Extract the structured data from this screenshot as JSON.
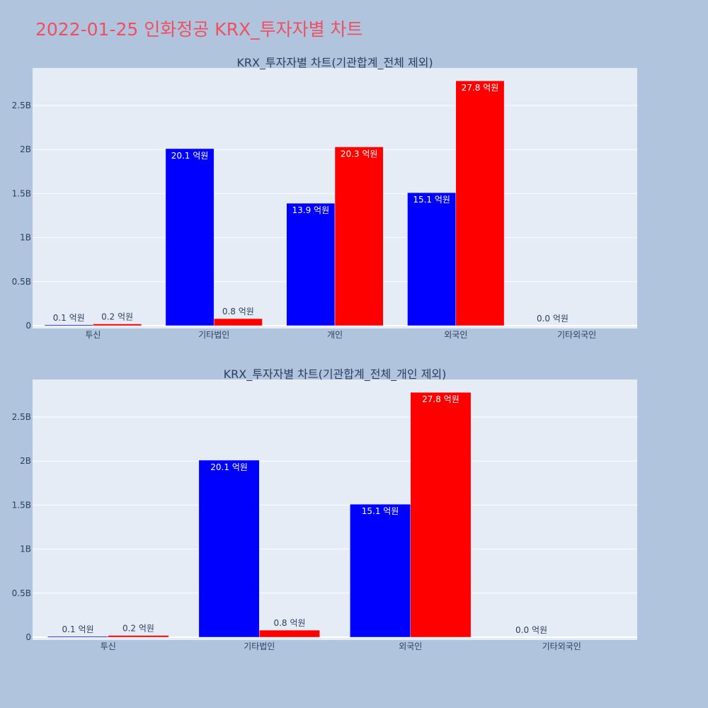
{
  "title": "2022-01-25 인화정공 KRX_투자자별 차트",
  "colors": {
    "buy": "#0000ff",
    "sell": "#ff0000",
    "background": "#b0c4de",
    "plot_bg": "#e5ecf6"
  },
  "chart_data": [
    {
      "type": "bar",
      "title": "KRX_투자자별 차트(기관합계_전체 제외)",
      "categories": [
        "투신",
        "기타법인",
        "개인",
        "외국인",
        "기타외국인"
      ],
      "series": [
        {
          "color": "#0000ff",
          "values": [
            10000000,
            2010000000,
            1390000000,
            1510000000,
            0
          ],
          "labels": [
            "0.1 억원",
            "20.1 억원",
            "13.9 억원",
            "15.1 억원",
            "0.0 억원"
          ]
        },
        {
          "color": "#ff0000",
          "values": [
            20000000,
            80000000,
            2030000000,
            2780000000,
            0
          ],
          "labels": [
            "0.2 억원",
            "0.8 억원",
            "20.3 억원",
            "27.8 억원",
            ""
          ]
        }
      ],
      "yticks": [
        "0",
        "0.5B",
        "1B",
        "1.5B",
        "2B",
        "2.5B"
      ],
      "ytick_values": [
        0,
        500000000,
        1000000000,
        1500000000,
        2000000000,
        2500000000
      ],
      "ylim": [
        0,
        2926000000
      ],
      "grid": true
    },
    {
      "type": "bar",
      "title": "KRX_투자자별 차트(기관합계_전체_개인 제외)",
      "categories": [
        "투신",
        "기타법인",
        "외국인",
        "기타외국인"
      ],
      "series": [
        {
          "color": "#0000ff",
          "values": [
            10000000,
            2010000000,
            1510000000,
            0
          ],
          "labels": [
            "0.1 억원",
            "20.1 억원",
            "15.1 억원",
            "0.0 억원"
          ]
        },
        {
          "color": "#ff0000",
          "values": [
            20000000,
            80000000,
            2780000000,
            0
          ],
          "labels": [
            "0.2 억원",
            "0.8 억원",
            "27.8 억원",
            ""
          ]
        }
      ],
      "yticks": [
        "0",
        "0.5B",
        "1B",
        "1.5B",
        "2B",
        "2.5B"
      ],
      "ytick_values": [
        0,
        500000000,
        1000000000,
        1500000000,
        2000000000,
        2500000000
      ],
      "ylim": [
        0,
        2926000000
      ],
      "grid": true
    }
  ]
}
